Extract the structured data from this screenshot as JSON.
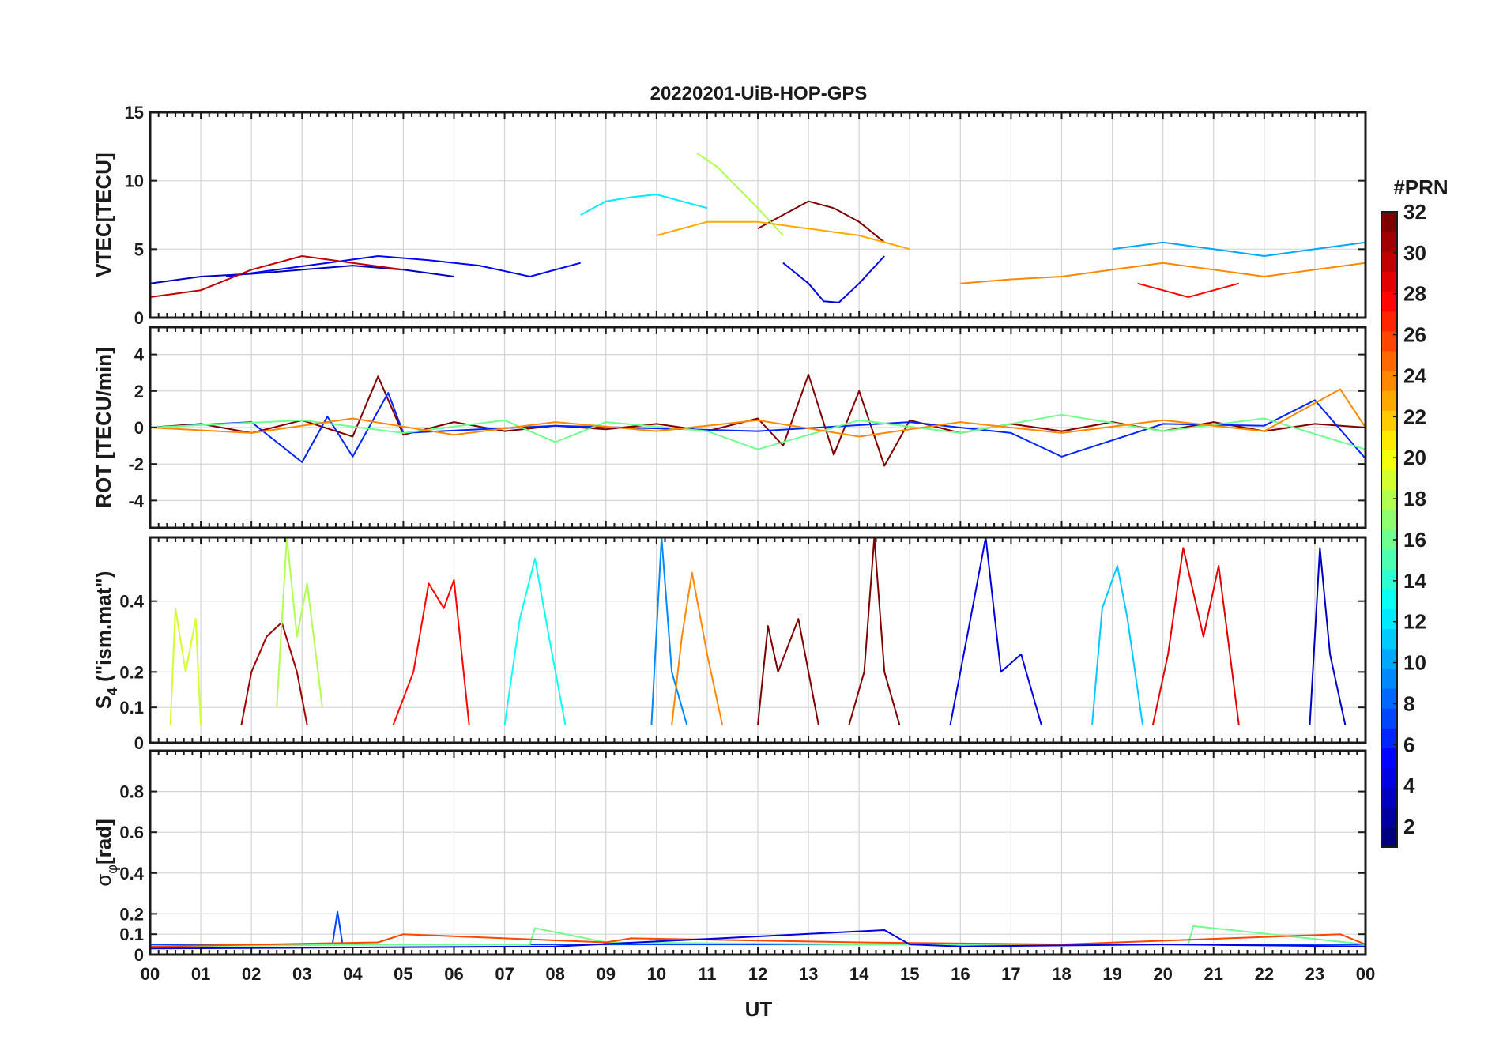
{
  "chart_data": {
    "type": "line",
    "title": "20220201-UiB-HOP-GPS",
    "xlabel": "UT",
    "x_ticks": [
      "00",
      "01",
      "02",
      "03",
      "04",
      "05",
      "06",
      "07",
      "08",
      "09",
      "10",
      "11",
      "12",
      "13",
      "14",
      "15",
      "16",
      "17",
      "18",
      "19",
      "20",
      "21",
      "22",
      "23",
      "00"
    ],
    "xlim": [
      0,
      24
    ],
    "grid": true,
    "panels": [
      {
        "id": "vtec",
        "ylabel": "VTEC[TECU]",
        "ylim": [
          0,
          15
        ],
        "y_ticks": [
          0,
          5,
          10,
          15
        ],
        "y_tick_labels": [
          "0",
          "5",
          "10",
          "15"
        ],
        "series": [
          {
            "prn": 3,
            "x": [
              0.0,
              1.0,
              2.0,
              3.0,
              4.0,
              5.0,
              6.0
            ],
            "y": [
              2.5,
              3.0,
              3.2,
              3.5,
              3.8,
              3.5,
              3.0
            ]
          },
          {
            "prn": 5,
            "x": [
              1.5,
              2.5,
              3.5,
              4.5,
              5.5,
              6.5,
              7.5,
              8.5
            ],
            "y": [
              3.0,
              3.5,
              4.0,
              4.5,
              4.2,
              3.8,
              3.0,
              4.0
            ]
          },
          {
            "prn": 30,
            "x": [
              0.0,
              1.0,
              2.0,
              3.0,
              4.0,
              5.0
            ],
            "y": [
              1.5,
              2.0,
              3.5,
              4.5,
              4.0,
              3.5
            ]
          },
          {
            "prn": 32,
            "x": [
              12.0,
              12.5,
              13.0,
              13.5,
              14.0,
              14.5
            ],
            "y": [
              6.5,
              7.5,
              8.5,
              8.0,
              7.0,
              5.5
            ]
          },
          {
            "prn": 12,
            "x": [
              8.5,
              9.0,
              9.5,
              10.0,
              10.5,
              11.0
            ],
            "y": [
              7.5,
              8.5,
              8.8,
              9.0,
              8.5,
              8.0
            ]
          },
          {
            "prn": 18,
            "x": [
              10.8,
              11.2,
              11.6,
              12.0,
              12.5
            ],
            "y": [
              12.0,
              11.0,
              9.5,
              8.0,
              6.0
            ]
          },
          {
            "prn": 4,
            "x": [
              12.5,
              13.0,
              13.3,
              13.6,
              14.0,
              14.5
            ],
            "y": [
              4.0,
              2.5,
              1.2,
              1.1,
              2.5,
              4.5
            ]
          },
          {
            "prn": 23,
            "x": [
              10.0,
              11.0,
              12.0,
              13.0,
              14.0,
              15.0
            ],
            "y": [
              6.0,
              7.0,
              7.0,
              6.5,
              6.0,
              5.0
            ]
          },
          {
            "prn": 10,
            "x": [
              19.0,
              20.0,
              21.0,
              22.0,
              23.0,
              24.0
            ],
            "y": [
              5.0,
              5.5,
              5.0,
              4.5,
              5.0,
              5.5
            ]
          },
          {
            "prn": 24,
            "x": [
              16.0,
              17.0,
              18.0,
              19.0,
              20.0,
              21.0,
              22.0,
              23.0,
              24.0
            ],
            "y": [
              2.5,
              2.8,
              3.0,
              3.5,
              4.0,
              3.5,
              3.0,
              3.5,
              4.0
            ]
          },
          {
            "prn": 28,
            "x": [
              19.5,
              20.0,
              20.5,
              21.0,
              21.5
            ],
            "y": [
              2.5,
              2.0,
              1.5,
              2.0,
              2.5
            ]
          }
        ]
      },
      {
        "id": "rot",
        "ylabel": "ROT [TECU/min]",
        "ylim": [
          -5.5,
          5.5
        ],
        "y_ticks": [
          -4,
          -2,
          0,
          2,
          4
        ],
        "y_tick_labels": [
          "-4",
          "-2",
          "0",
          "2",
          "4"
        ],
        "series": [
          {
            "prn": 32,
            "x": [
              0,
              1,
              2,
              3,
              4,
              4.5,
              5,
              6,
              7,
              8,
              9,
              10,
              11,
              12,
              12.5,
              13,
              13.5,
              14,
              14.5,
              15,
              16,
              17,
              18,
              19,
              20,
              21,
              22,
              23,
              24
            ],
            "y": [
              0,
              0.2,
              -0.3,
              0.4,
              -0.5,
              2.8,
              -0.4,
              0.3,
              -0.2,
              0.1,
              -0.1,
              0.2,
              -0.2,
              0.5,
              -1.0,
              2.9,
              -1.5,
              2.0,
              -2.1,
              0.4,
              -0.3,
              0.2,
              -0.2,
              0.3,
              -0.2,
              0.3,
              -0.2,
              0.2,
              0
            ]
          },
          {
            "prn": 6,
            "x": [
              0,
              2,
              3,
              3.5,
              4,
              4.7,
              5,
              8,
              12,
              15,
              17,
              18,
              20,
              22,
              23,
              24
            ],
            "y": [
              0,
              0.3,
              -1.9,
              0.6,
              -1.6,
              1.9,
              -0.3,
              0.1,
              -0.2,
              0.3,
              -0.3,
              -1.6,
              0.2,
              0.1,
              1.5,
              -1.7
            ]
          },
          {
            "prn": 16,
            "x": [
              0,
              3,
              5,
              7,
              8,
              9,
              11,
              12,
              14,
              16,
              18,
              20,
              22,
              24
            ],
            "y": [
              0,
              0.4,
              -0.3,
              0.4,
              -0.8,
              0.3,
              -0.2,
              -1.2,
              0.4,
              -0.3,
              0.7,
              -0.2,
              0.5,
              -1.2
            ]
          },
          {
            "prn": 24,
            "x": [
              0,
              2,
              4,
              6,
              8,
              10,
              12,
              14,
              16,
              18,
              20,
              22,
              23.5,
              24
            ],
            "y": [
              0,
              -0.3,
              0.5,
              -0.4,
              0.3,
              -0.2,
              0.4,
              -0.5,
              0.3,
              -0.3,
              0.4,
              -0.2,
              2.1,
              0
            ]
          }
        ]
      },
      {
        "id": "s4",
        "ylabel_main": "S",
        "ylabel_sub": "4",
        "ylabel_rest": " (\"ism.mat\")",
        "ylim": [
          0,
          0.58
        ],
        "y_ticks": [
          0,
          0.1,
          0.2,
          0.4
        ],
        "y_tick_labels": [
          "0",
          "0.1",
          "0.2",
          "0.4"
        ],
        "series": [
          {
            "prn": 19,
            "x": [
              0.4,
              0.5,
              0.7,
              0.9,
              1.0
            ],
            "y": [
              0.05,
              0.38,
              0.2,
              0.35,
              0.05
            ]
          },
          {
            "prn": 31,
            "x": [
              1.8,
              2.0,
              2.3,
              2.6,
              2.9,
              3.1
            ],
            "y": [
              0.05,
              0.2,
              0.3,
              0.34,
              0.2,
              0.05
            ]
          },
          {
            "prn": 18,
            "x": [
              2.5,
              2.7,
              2.9,
              3.1,
              3.4
            ],
            "y": [
              0.1,
              0.58,
              0.3,
              0.45,
              0.1
            ]
          },
          {
            "prn": 28,
            "x": [
              4.8,
              5.2,
              5.5,
              5.8,
              6.0,
              6.3
            ],
            "y": [
              0.05,
              0.2,
              0.45,
              0.38,
              0.46,
              0.05
            ]
          },
          {
            "prn": 13,
            "x": [
              7.0,
              7.3,
              7.6,
              7.9,
              8.2
            ],
            "y": [
              0.05,
              0.35,
              0.52,
              0.28,
              0.05
            ]
          },
          {
            "prn": 9,
            "x": [
              9.9,
              10.1,
              10.3,
              10.6
            ],
            "y": [
              0.05,
              0.58,
              0.2,
              0.05
            ]
          },
          {
            "prn": 24,
            "x": [
              10.3,
              10.5,
              10.7,
              11.0,
              11.3
            ],
            "y": [
              0.05,
              0.3,
              0.48,
              0.25,
              0.05
            ]
          },
          {
            "prn": 32,
            "x": [
              12.0,
              12.2,
              12.4,
              12.8,
              13.2
            ],
            "y": [
              0.05,
              0.33,
              0.2,
              0.35,
              0.05
            ]
          },
          {
            "prn": 32,
            "x": [
              13.8,
              14.1,
              14.3,
              14.5,
              14.8
            ],
            "y": [
              0.05,
              0.2,
              0.58,
              0.2,
              0.05
            ]
          },
          {
            "prn": 4,
            "x": [
              15.8,
              16.2,
              16.5,
              16.8,
              17.2,
              17.6
            ],
            "y": [
              0.05,
              0.35,
              0.58,
              0.2,
              0.25,
              0.05
            ]
          },
          {
            "prn": 11,
            "x": [
              18.6,
              18.8,
              19.1,
              19.3,
              19.6
            ],
            "y": [
              0.05,
              0.38,
              0.5,
              0.35,
              0.05
            ]
          },
          {
            "prn": 29,
            "x": [
              19.8,
              20.1,
              20.4,
              20.8,
              21.1,
              21.5
            ],
            "y": [
              0.05,
              0.25,
              0.55,
              0.3,
              0.5,
              0.05
            ]
          },
          {
            "prn": 3,
            "x": [
              22.9,
              23.1,
              23.3,
              23.6
            ],
            "y": [
              0.05,
              0.55,
              0.25,
              0.05
            ]
          }
        ]
      },
      {
        "id": "sigma",
        "ylabel_main": "σ",
        "ylabel_sub": "φ",
        "ylabel_rest": "[rad]",
        "ylim": [
          0,
          1.0
        ],
        "y_ticks": [
          0,
          0.1,
          0.2,
          0.4,
          0.6,
          0.8
        ],
        "y_tick_labels": [
          "0",
          "0.1",
          "0.2",
          "0.4",
          "0.6",
          "0.8"
        ],
        "series": [
          {
            "prn": 7,
            "x": [
              0,
              3,
              3.6,
              3.7,
              3.8,
              6,
              12,
              18,
              24
            ],
            "y": [
              0.05,
              0.05,
              0.05,
              0.21,
              0.05,
              0.05,
              0.05,
              0.05,
              0.05
            ]
          },
          {
            "prn": 16,
            "x": [
              0,
              5,
              7.5,
              7.6,
              9,
              14,
              20.5,
              20.6,
              24
            ],
            "y": [
              0.04,
              0.05,
              0.05,
              0.13,
              0.06,
              0.05,
              0.05,
              0.14,
              0.05
            ]
          },
          {
            "prn": 26,
            "x": [
              0,
              4.5,
              5,
              9,
              9.5,
              14,
              18,
              23.5,
              24
            ],
            "y": [
              0.04,
              0.06,
              0.1,
              0.06,
              0.08,
              0.06,
              0.05,
              0.1,
              0.05
            ]
          },
          {
            "prn": 4,
            "x": [
              0,
              8,
              14.5,
              15,
              16,
              20,
              24
            ],
            "y": [
              0.03,
              0.04,
              0.12,
              0.05,
              0.04,
              0.05,
              0.04
            ]
          }
        ]
      }
    ],
    "colorbar": {
      "label": "#PRN",
      "range": [
        1,
        32
      ],
      "colormap": "jet",
      "ticks": [
        2,
        4,
        6,
        8,
        10,
        12,
        14,
        16,
        18,
        20,
        22,
        24,
        26,
        28,
        30,
        32
      ],
      "tick_labels": [
        "2",
        "4",
        "6",
        "8",
        "10",
        "12",
        "14",
        "16",
        "18",
        "20",
        "22",
        "24",
        "26",
        "28",
        "30",
        "32"
      ]
    }
  }
}
